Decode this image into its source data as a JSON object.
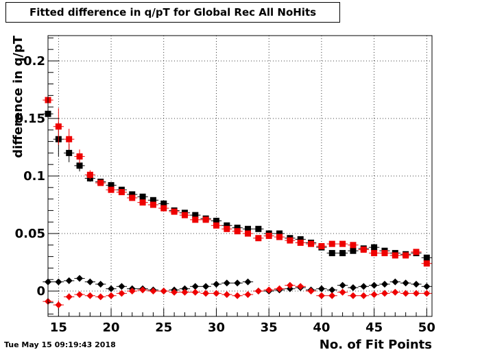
{
  "header": {
    "title": "Fitted difference in q/pT for Global Rec All NoHits"
  },
  "footer": {
    "timestamp": "Tue May 15 09:19:43 2018"
  },
  "colors": {
    "black_series": "#000000",
    "red_series": "#ee0000",
    "grid": "#000000"
  },
  "chart_data": {
    "type": "scatter",
    "title": "Fitted difference in q/pT for Global Rec All NoHits",
    "xlabel": "No. of Fit Points",
    "ylabel": "difference in q/pT",
    "xlim": [
      14,
      50.5
    ],
    "ylim": [
      -0.022,
      0.222
    ],
    "grid": true,
    "x_ticks": [
      15,
      20,
      25,
      30,
      35,
      40,
      45,
      50
    ],
    "x_tick_labels": [
      "15",
      "20",
      "25",
      "30",
      "35",
      "40",
      "45",
      "50"
    ],
    "y_ticks": [
      0,
      0.05,
      0.1,
      0.15,
      0.2
    ],
    "y_tick_labels": [
      "0",
      "0.05",
      "0.1",
      "0.15",
      "0.2"
    ],
    "series": [
      {
        "marker": "square",
        "color": "#000000",
        "x": [
          14,
          15,
          16,
          17,
          18,
          19,
          20,
          21,
          22,
          23,
          24,
          25,
          26,
          27,
          28,
          29,
          30,
          31,
          32,
          33,
          34,
          35,
          36,
          37,
          38,
          39,
          40,
          41,
          42,
          43,
          44,
          45,
          46,
          47,
          48,
          49,
          50
        ],
        "y": [
          0.154,
          0.132,
          0.12,
          0.109,
          0.098,
          0.095,
          0.092,
          0.088,
          0.084,
          0.082,
          0.079,
          0.076,
          0.07,
          0.068,
          0.066,
          0.063,
          0.061,
          0.057,
          0.055,
          0.054,
          0.054,
          0.05,
          0.05,
          0.046,
          0.045,
          0.042,
          0.038,
          0.033,
          0.033,
          0.035,
          0.037,
          0.038,
          0.035,
          0.033,
          0.032,
          0.033,
          0.029
        ],
        "yerr": [
          0.03,
          0.015,
          0.008,
          0.005,
          0.003,
          0.002,
          0.002,
          0.002,
          0.002,
          0.002,
          0.002,
          0.002,
          0.002,
          0.002,
          0.002,
          0.002,
          0.002,
          0.002,
          0.002,
          0.002,
          0.002,
          0.002,
          0.002,
          0.002,
          0.002,
          0.002,
          0.002,
          0.002,
          0.002,
          0.002,
          0.002,
          0.002,
          0.002,
          0.002,
          0.002,
          0.002,
          0.002
        ]
      },
      {
        "marker": "square",
        "color": "#ee0000",
        "x": [
          14,
          15,
          16,
          17,
          18,
          19,
          20,
          21,
          22,
          23,
          24,
          25,
          26,
          27,
          28,
          29,
          30,
          31,
          32,
          33,
          34,
          35,
          36,
          37,
          38,
          39,
          40,
          41,
          42,
          43,
          44,
          45,
          46,
          47,
          48,
          49,
          50
        ],
        "y": [
          0.166,
          0.143,
          0.132,
          0.117,
          0.101,
          0.094,
          0.088,
          0.086,
          0.081,
          0.077,
          0.075,
          0.072,
          0.069,
          0.066,
          0.062,
          0.062,
          0.057,
          0.054,
          0.052,
          0.05,
          0.046,
          0.048,
          0.047,
          0.044,
          0.042,
          0.041,
          0.039,
          0.041,
          0.041,
          0.04,
          0.036,
          0.033,
          0.033,
          0.031,
          0.031,
          0.034,
          0.024
        ],
        "yerr": [
          0.04,
          0.016,
          0.009,
          0.006,
          0.004,
          0.002,
          0.002,
          0.002,
          0.002,
          0.002,
          0.002,
          0.002,
          0.002,
          0.002,
          0.002,
          0.002,
          0.002,
          0.002,
          0.002,
          0.002,
          0.002,
          0.002,
          0.002,
          0.002,
          0.002,
          0.002,
          0.002,
          0.002,
          0.002,
          0.002,
          0.002,
          0.002,
          0.002,
          0.002,
          0.002,
          0.002,
          0.002
        ]
      },
      {
        "marker": "diamond",
        "color": "#000000",
        "x": [
          14,
          15,
          16,
          17,
          18,
          19,
          20,
          21,
          22,
          23,
          24,
          25,
          26,
          27,
          28,
          29,
          30,
          31,
          32,
          33,
          34,
          35,
          36,
          37,
          38,
          39,
          40,
          41,
          42,
          43,
          44,
          45,
          46,
          47,
          48,
          49,
          50
        ],
        "y": [
          0.008,
          0.008,
          0.009,
          0.011,
          0.008,
          0.006,
          0.002,
          0.004,
          0.002,
          0.002,
          0.001,
          0.0,
          0.001,
          0.002,
          0.004,
          0.004,
          0.006,
          0.007,
          0.007,
          0.008,
          0.0,
          0.0,
          0.001,
          0.002,
          0.003,
          0.001,
          0.002,
          0.001,
          0.005,
          0.003,
          0.004,
          0.005,
          0.006,
          0.008,
          0.007,
          0.006,
          0.004
        ],
        "yerr": [
          0.002,
          0.002,
          0.002,
          0.002,
          0.002,
          0.002,
          0.002,
          0.002,
          0.002,
          0.002,
          0.002,
          0.002,
          0.002,
          0.002,
          0.002,
          0.002,
          0.002,
          0.002,
          0.002,
          0.002,
          0.002,
          0.002,
          0.002,
          0.002,
          0.002,
          0.002,
          0.002,
          0.002,
          0.002,
          0.002,
          0.002,
          0.002,
          0.002,
          0.002,
          0.002,
          0.002,
          0.002
        ]
      },
      {
        "marker": "diamond",
        "color": "#ee0000",
        "x": [
          14,
          15,
          16,
          17,
          18,
          19,
          20,
          21,
          22,
          23,
          24,
          25,
          26,
          27,
          28,
          29,
          30,
          31,
          32,
          33,
          34,
          35,
          36,
          37,
          38,
          39,
          40,
          41,
          42,
          43,
          44,
          45,
          46,
          47,
          48,
          49,
          50
        ],
        "y": [
          -0.009,
          -0.012,
          -0.005,
          -0.003,
          -0.004,
          -0.005,
          -0.004,
          -0.002,
          0.0,
          0.001,
          0.0,
          0.0,
          -0.001,
          -0.001,
          -0.001,
          -0.002,
          -0.002,
          -0.003,
          -0.004,
          -0.003,
          0.0,
          0.001,
          0.002,
          0.005,
          0.004,
          0.0,
          -0.004,
          -0.004,
          -0.001,
          -0.004,
          -0.004,
          -0.003,
          -0.002,
          -0.001,
          -0.002,
          -0.002,
          -0.002
        ],
        "yerr": [
          0.006,
          0.004,
          0.003,
          0.002,
          0.002,
          0.002,
          0.002,
          0.002,
          0.002,
          0.002,
          0.002,
          0.002,
          0.002,
          0.002,
          0.002,
          0.002,
          0.002,
          0.002,
          0.002,
          0.002,
          0.002,
          0.002,
          0.002,
          0.002,
          0.002,
          0.002,
          0.002,
          0.002,
          0.002,
          0.002,
          0.002,
          0.002,
          0.002,
          0.002,
          0.002,
          0.002,
          0.002
        ]
      }
    ]
  }
}
